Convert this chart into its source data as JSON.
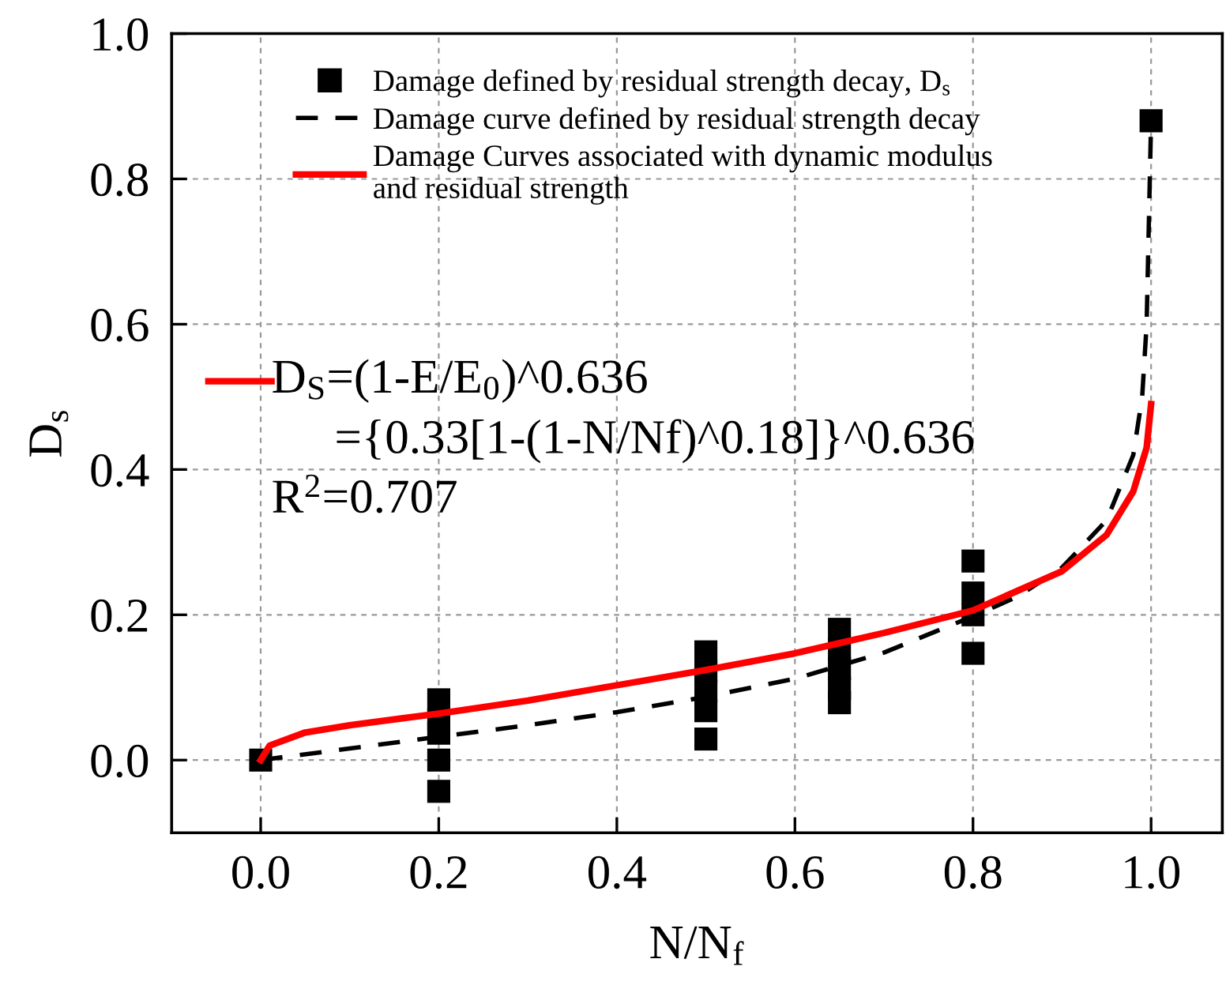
{
  "chart_data": {
    "type": "scatter",
    "xlabel": "N/N$_{f}$",
    "ylabel": "D$_{s}$",
    "xlim": [
      -0.1,
      1.08
    ],
    "ylim": [
      -0.1,
      1.0
    ],
    "xticks": [
      "0.0",
      0.2,
      0.4,
      0.6,
      0.8,
      "1.0"
    ],
    "yticks": [
      "0.0",
      0.2,
      0.4,
      0.6,
      0.8,
      "1.0"
    ],
    "grid": true,
    "legend": "top",
    "series": [
      {
        "name": "Damage defined by residual strength decay, D$_{s}$",
        "marker": "square",
        "color": "#000000",
        "x": [
          0,
          0.2,
          0.2,
          0.2,
          0.2,
          0.2,
          0.5,
          0.5,
          0.5,
          0.5,
          0.5,
          0.65,
          0.65,
          0.65,
          0.65,
          0.65,
          0.8,
          0.8,
          0.8,
          0.8,
          1.0
        ],
        "values": [
          0,
          0.083,
          0.056,
          0.037,
          0,
          -0.043,
          0.149,
          0.122,
          0.095,
          0.068,
          0.029,
          0.18,
          0.153,
          0.126,
          0.099,
          0.079,
          0.274,
          0.23,
          0.2,
          0.147,
          0.88
        ]
      },
      {
        "name": "Damage curve defined by residual strength decay",
        "type": "line",
        "line_style": "dashed",
        "color": "#000000",
        "x": [
          0,
          0.1,
          0.2,
          0.3,
          0.4,
          0.5,
          0.6,
          0.65,
          0.7,
          0.8,
          0.85,
          0.9,
          0.95,
          0.98,
          0.99,
          0.995,
          1.0
        ],
        "values": [
          0,
          0.016,
          0.032,
          0.048,
          0.066,
          0.087,
          0.112,
          0.13,
          0.148,
          0.198,
          0.225,
          0.265,
          0.33,
          0.42,
          0.5,
          0.6,
          0.88
        ]
      },
      {
        "name": "Damage Curves associated with dynamic modulus\nand residual strength",
        "type": "line",
        "line_style": "solid",
        "color": "#ff0000",
        "x": [
          0,
          0.01,
          0.05,
          0.1,
          0.2,
          0.3,
          0.4,
          0.5,
          0.6,
          0.65,
          0.7,
          0.8,
          0.9,
          0.95,
          0.98,
          0.995,
          1.0
        ],
        "values": [
          0,
          0.02,
          0.038,
          0.048,
          0.064,
          0.082,
          0.103,
          0.124,
          0.147,
          0.161,
          0.175,
          0.206,
          0.26,
          0.31,
          0.37,
          0.43,
          0.49
        ]
      }
    ],
    "annotations": [
      "D$_{S}$=(1-E/E$_{0}$)^0.636",
      "={0.33[1-(1-N/Nf)^0.18]}^0.636",
      "R$^{2}$=0.707"
    ]
  }
}
